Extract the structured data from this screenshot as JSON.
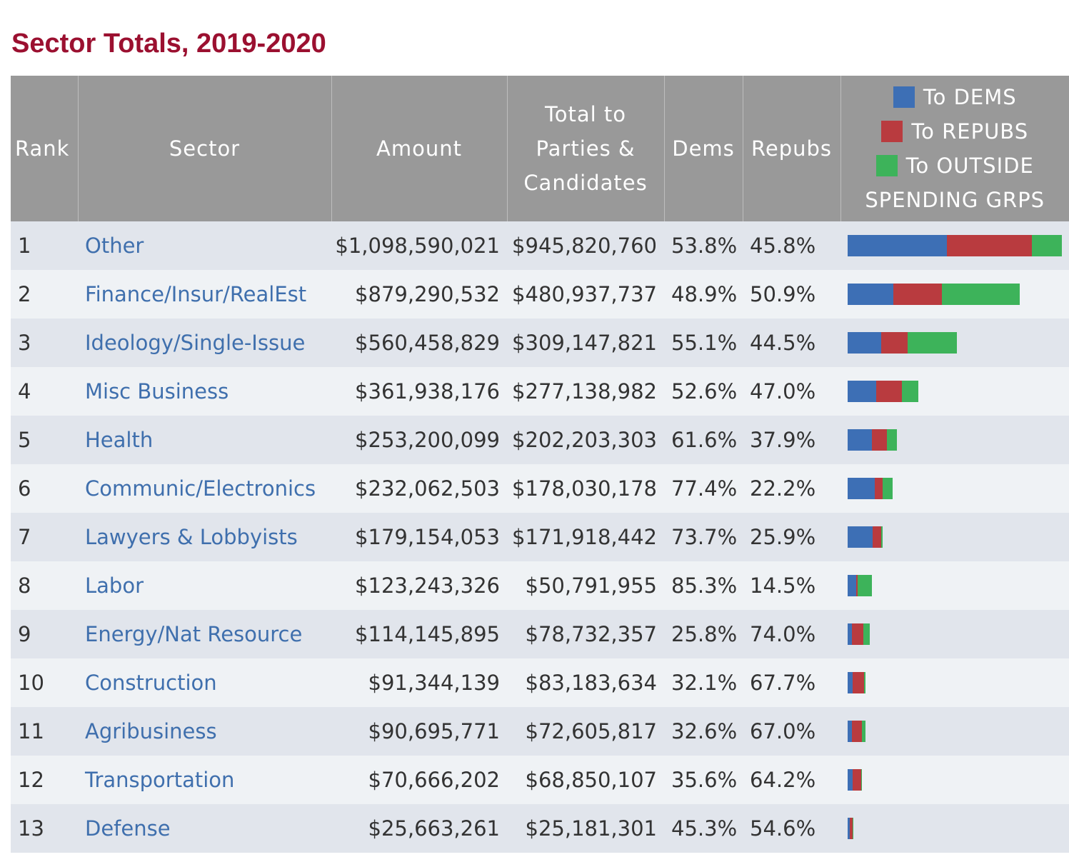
{
  "page_title": "Sector Totals, 2019-2020",
  "colors": {
    "title": "#9b1030",
    "dems": "#3d6fb5",
    "repubs": "#b93b3f",
    "outside": "#3db35a",
    "link": "#3f6fad"
  },
  "headers": {
    "rank": "Rank",
    "sector": "Sector",
    "amount": "Amount",
    "total_line1": "Total to",
    "total_line2": "Parties &",
    "total_line3": "Candidates",
    "dems": "Dems",
    "repubs": "Repubs",
    "legend_dems": "To DEMS",
    "legend_repubs": "To REPUBS",
    "legend_outside_line1": "To OUTSIDE",
    "legend_outside_line2": "SPENDING GRPS"
  },
  "rows": [
    {
      "rank": "1",
      "sector": "Other",
      "amount": "$1,098,590,021",
      "total": "$945,820,760",
      "dems": "53.8%",
      "repubs": "45.8%"
    },
    {
      "rank": "2",
      "sector": "Finance/Insur/RealEst",
      "amount": "$879,290,532",
      "total": "$480,937,737",
      "dems": "48.9%",
      "repubs": "50.9%"
    },
    {
      "rank": "3",
      "sector": "Ideology/Single-Issue",
      "amount": "$560,458,829",
      "total": "$309,147,821",
      "dems": "55.1%",
      "repubs": "44.5%"
    },
    {
      "rank": "4",
      "sector": "Misc Business",
      "amount": "$361,938,176",
      "total": "$277,138,982",
      "dems": "52.6%",
      "repubs": "47.0%"
    },
    {
      "rank": "5",
      "sector": "Health",
      "amount": "$253,200,099",
      "total": "$202,203,303",
      "dems": "61.6%",
      "repubs": "37.9%"
    },
    {
      "rank": "6",
      "sector": "Communic/Electronics",
      "amount": "$232,062,503",
      "total": "$178,030,178",
      "dems": "77.4%",
      "repubs": "22.2%"
    },
    {
      "rank": "7",
      "sector": "Lawyers & Lobbyists",
      "amount": "$179,154,053",
      "total": "$171,918,442",
      "dems": "73.7%",
      "repubs": "25.9%"
    },
    {
      "rank": "8",
      "sector": "Labor",
      "amount": "$123,243,326",
      "total": "$50,791,955",
      "dems": "85.3%",
      "repubs": "14.5%"
    },
    {
      "rank": "9",
      "sector": "Energy/Nat Resource",
      "amount": "$114,145,895",
      "total": "$78,732,357",
      "dems": "25.8%",
      "repubs": "74.0%"
    },
    {
      "rank": "10",
      "sector": "Construction",
      "amount": "$91,344,139",
      "total": "$83,183,634",
      "dems": "32.1%",
      "repubs": "67.7%"
    },
    {
      "rank": "11",
      "sector": "Agribusiness",
      "amount": "$90,695,771",
      "total": "$72,605,817",
      "dems": "32.6%",
      "repubs": "67.0%"
    },
    {
      "rank": "12",
      "sector": "Transportation",
      "amount": "$70,666,202",
      "total": "$68,850,107",
      "dems": "35.6%",
      "repubs": "64.2%"
    },
    {
      "rank": "13",
      "sector": "Defense",
      "amount": "$25,663,261",
      "total": "$25,181,301",
      "dems": "45.3%",
      "repubs": "54.6%"
    }
  ],
  "chart_data": {
    "type": "bar",
    "orientation": "horizontal-stacked",
    "title": "Sector Totals, 2019-2020",
    "categories": [
      "Other",
      "Finance/Insur/RealEst",
      "Ideology/Single-Issue",
      "Misc Business",
      "Health",
      "Communic/Electronics",
      "Lawyers & Lobbyists",
      "Labor",
      "Energy/Nat Resource",
      "Construction",
      "Agribusiness",
      "Transportation",
      "Defense"
    ],
    "legend": "top",
    "series": [
      {
        "name": "To DEMS",
        "values": [
          508.8,
          235.2,
          170.3,
          145.8,
          124.6,
          137.8,
          126.7,
          43.3,
          20.3,
          26.7,
          23.7,
          24.5,
          11.4
        ]
      },
      {
        "name": "To REPUBS",
        "values": [
          433.2,
          244.8,
          137.6,
          130.3,
          76.6,
          39.5,
          44.5,
          7.4,
          58.3,
          56.3,
          48.6,
          44.2,
          13.7
        ]
      },
      {
        "name": "To OUTSIDE SPENDING GRPS",
        "values": [
          152.8,
          398.4,
          251.3,
          84.8,
          51.0,
          54.0,
          7.2,
          72.5,
          35.4,
          8.2,
          18.1,
          1.8,
          0.5
        ]
      }
    ],
    "unit": "$M",
    "xlim": [
      0,
      1098.6
    ]
  }
}
